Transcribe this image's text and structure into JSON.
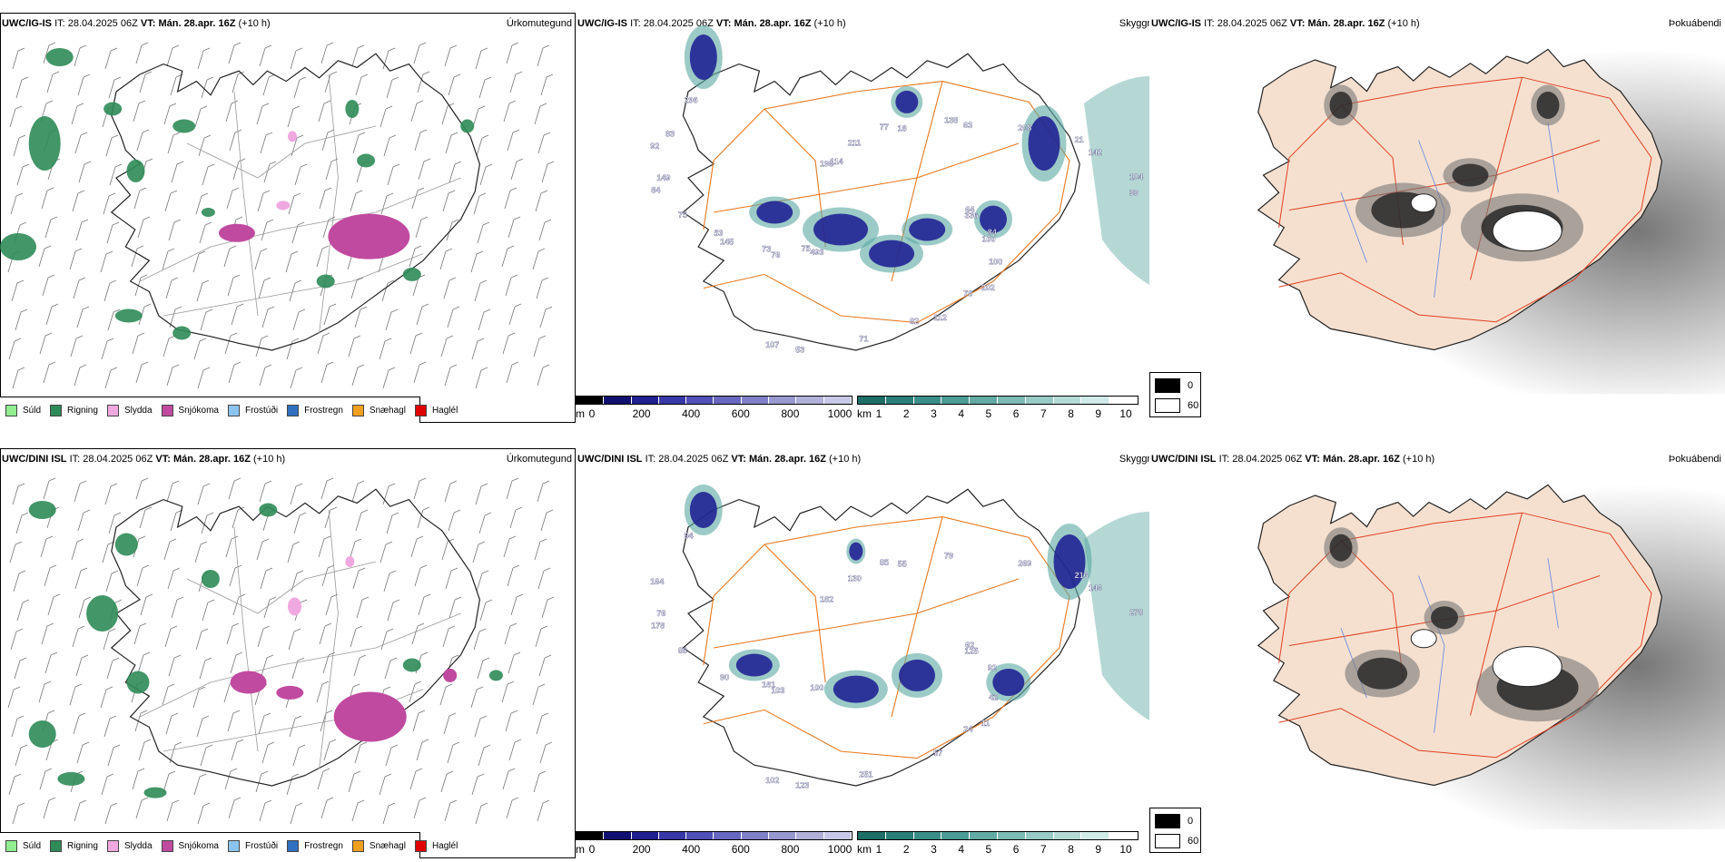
{
  "rows": [
    {
      "model": "UWC/IG-IS",
      "it_label": "IT:",
      "it_value": "28.04.2025 06Z",
      "vt_label": "VT:",
      "vt_value": "Mán. 28.apr. 16Z",
      "lead": "(+10 h)",
      "panels": {
        "precip": {
          "title": "Úrkomutegund"
        },
        "cloud": {
          "title": "Skyggni",
          "labels": [
            "64",
            "76",
            "77",
            "202",
            "84",
            "21",
            "53",
            "198",
            "84",
            "145",
            "138",
            "112",
            "92",
            "104",
            "493",
            "211",
            "100",
            "75",
            "208",
            "71",
            "296",
            "336",
            "73",
            "18",
            "78",
            "149",
            "142",
            "107",
            "114",
            "100",
            "53",
            "63",
            "82",
            "83",
            "99",
            "75"
          ]
        },
        "fog": {
          "title": "Þokuábendi"
        }
      }
    },
    {
      "model": "UWC/DINI ISL",
      "it_label": "IT:",
      "it_value": "28.04.2025 06Z",
      "vt_label": "VT:",
      "vt_value": "Mán. 28.apr. 16Z",
      "lead": "(+10 h)",
      "panels": {
        "precip": {
          "title": "Úrkomutegund"
        },
        "cloud": {
          "title": "Skyggni",
          "labels": [
            "62",
            "103",
            "85",
            "11",
            "178",
            "216",
            "123",
            "182",
            "92",
            "90",
            "79",
            "57",
            "164",
            "278",
            "100",
            "130",
            "42",
            "88",
            "269",
            "251",
            "94",
            "125",
            "161",
            "55",
            "24",
            "76",
            "146",
            "102"
          ]
        },
        "fog": {
          "title": "Þokuábendi"
        }
      }
    }
  ],
  "precip_legend": [
    {
      "label": "Súld",
      "color": "#90ee90"
    },
    {
      "label": "Rigning",
      "color": "#2e8b57"
    },
    {
      "label": "Slydda",
      "color": "#f0a8e0"
    },
    {
      "label": "Snjókoma",
      "color": "#c04aa0"
    },
    {
      "label": "Frostúði",
      "color": "#8cc4f0"
    },
    {
      "label": "Frostregn",
      "color": "#3070c0"
    },
    {
      "label": "Snæhagl",
      "color": "#f0a020"
    },
    {
      "label": "Haglél",
      "color": "#e00000"
    }
  ],
  "cloud_base_bar": {
    "unit": "m",
    "ticks": [
      "0",
      "200",
      "400",
      "600",
      "800",
      "1000"
    ],
    "colors": [
      "#000000",
      "#101070",
      "#202090",
      "#3838a8",
      "#5050b8",
      "#6868c0",
      "#8080c8",
      "#9898d0",
      "#b0b0d8",
      "#c8c8e8"
    ]
  },
  "visibility_bar": {
    "unit": "km",
    "ticks": [
      "1",
      "2",
      "3",
      "4",
      "5",
      "6",
      "7",
      "8",
      "9",
      "10"
    ],
    "colors": [
      "#1e6e68",
      "#2a7e78",
      "#3a8e88",
      "#4c9c96",
      "#62aaa4",
      "#7cbab4",
      "#98cac6",
      "#b4dad6",
      "#d0eae8",
      "#ffffff"
    ]
  },
  "fog_legend": {
    "values": [
      "0",
      "60"
    ],
    "colors": [
      "#000000",
      "#ffffff"
    ]
  },
  "colors": {
    "land": "#f5e0d0",
    "coast": "#222222",
    "roads": "#e87820",
    "rivers": "#7090e0",
    "snow": "#c04aa0",
    "rain": "#2e8b57",
    "cloud_dark": "#1a1a90",
    "cloud_teal": "#5aa8a2"
  }
}
